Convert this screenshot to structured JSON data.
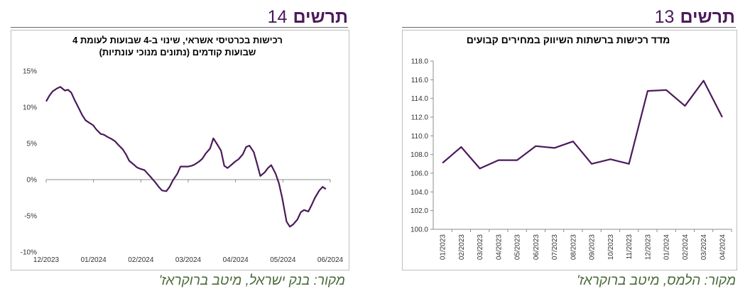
{
  "colors": {
    "line": "#4b1a5a",
    "heading": "#4b1a5a",
    "source": "#4a6b3a",
    "axis": "#8c8c8c"
  },
  "left_panel": {
    "label": "תרשים",
    "number": "14",
    "title_line1": "רכישות בכרטיסי אשראי, שינוי ב-4 שבועות לעומת 4",
    "title_line2": "שבועות קודמים (נתונים מנוכי עונתיות)",
    "source": "מקור: בנק ישראל, מיטב ברוקראז'"
  },
  "right_panel": {
    "label": "תרשים",
    "number": "13",
    "title": "מדד רכישות ברשתות השיווק במחירים קבועים",
    "source": "מקור: הלמס, מיטב ברוקראז'"
  },
  "chart_data": [
    {
      "type": "line",
      "title": "רכישות בכרטיסי אשראי, שינוי ב-4 שבועות לעומת 4 שבועות קודמים (נתונים מנוכי עונתיות)",
      "x_ticks": [
        "12/2023",
        "01/2024",
        "02/2024",
        "03/2024",
        "04/2024",
        "05/2024",
        "06/2024"
      ],
      "y_ticks": [
        "15%",
        "10%",
        "5%",
        "0%",
        "-5%",
        "-10%"
      ],
      "ylim": [
        -10,
        15
      ],
      "xlim": [
        0,
        26
      ],
      "x_unit": "weeks since 12/2023",
      "grid": false,
      "series": [
        {
          "x": [
            0,
            0.3,
            0.6,
            1,
            1.3,
            1.7,
            2,
            2.3,
            2.6,
            3,
            3.3,
            3.6,
            4,
            4.3,
            4.6,
            5,
            5.3,
            5.6,
            6,
            6.3,
            6.6,
            7,
            7.3,
            7.6,
            8,
            8.3,
            8.6,
            9,
            9.3,
            9.6,
            10,
            10.3,
            10.6,
            11,
            11.3,
            11.6,
            12,
            12.3,
            12.6,
            13,
            13.3,
            13.6,
            14,
            14.3,
            14.6,
            15,
            15.3,
            15.6,
            16,
            16.3,
            16.6,
            17,
            17.3,
            17.6,
            18,
            18.3,
            18.6,
            19,
            19.3,
            19.6,
            20,
            20.3,
            20.6,
            21,
            21.3,
            21.6,
            22,
            22.3,
            22.6,
            23,
            23.3,
            23.6,
            24,
            24.3,
            24.6,
            25,
            25.3,
            25.6
          ],
          "values": [
            10.8,
            11.6,
            12.2,
            12.6,
            12.8,
            12.3,
            12.4,
            12.0,
            11.0,
            9.8,
            8.9,
            8.2,
            7.8,
            7.5,
            6.9,
            6.3,
            6.2,
            5.9,
            5.6,
            5.3,
            4.8,
            4.2,
            3.5,
            2.6,
            2.1,
            1.7,
            1.5,
            1.3,
            0.8,
            0.3,
            -0.4,
            -1.0,
            -1.5,
            -1.6,
            -1.0,
            -0.1,
            0.8,
            1.8,
            1.8,
            1.8,
            1.9,
            2.1,
            2.5,
            2.9,
            3.6,
            4.3,
            5.7,
            5.0,
            4.0,
            1.9,
            1.6,
            2.1,
            2.5,
            2.8,
            3.5,
            4.5,
            4.7,
            3.8,
            2.2,
            0.5,
            1.0,
            1.6,
            2.0,
            0.8,
            -0.5,
            -2.5,
            -5.8,
            -6.5,
            -6.2,
            -5.5,
            -4.5,
            -4.2,
            -4.4,
            -3.5,
            -2.5,
            -1.5,
            -1.0,
            -1.3
          ]
        }
      ]
    },
    {
      "type": "line",
      "title": "מדד רכישות ברשתות השיווק במחירים קבועים",
      "categories": [
        "01/2023",
        "02/2023",
        "03/2023",
        "04/2023",
        "05/2023",
        "06/2023",
        "07/2023",
        "08/2023",
        "09/2023",
        "10/2023",
        "11/2023",
        "12/2023",
        "01/2024",
        "02/2024",
        "03/2024",
        "04/2024"
      ],
      "y_ticks": [
        "118.0",
        "116.0",
        "114.0",
        "112.0",
        "110.0",
        "108.0",
        "106.0",
        "104.0",
        "102.0",
        "100.0"
      ],
      "ylim": [
        100,
        118
      ],
      "grid": false,
      "series": [
        {
          "values": [
            107.1,
            108.8,
            106.5,
            107.4,
            107.4,
            108.9,
            108.7,
            109.4,
            107.0,
            107.5,
            107.0,
            114.8,
            114.9,
            113.2,
            115.9,
            112.0
          ]
        }
      ]
    }
  ]
}
